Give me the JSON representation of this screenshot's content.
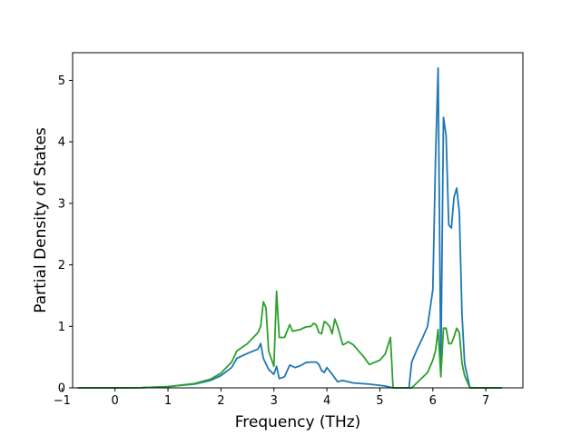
{
  "chart_data": {
    "type": "line",
    "title": "",
    "xlabel": "Frequency (THz)",
    "ylabel": "Partial Density of States",
    "xlim": [
      -0.8,
      7.7
    ],
    "ylim": [
      0,
      5.45
    ],
    "xticks": [
      -1,
      0,
      1,
      2,
      3,
      4,
      5,
      6,
      7
    ],
    "yticks": [
      0,
      1,
      2,
      3,
      4,
      5
    ],
    "grid": false,
    "legend": "none",
    "series": [
      {
        "color": "#1f77b4",
        "x": [
          -0.7,
          0,
          0.5,
          1,
          1.5,
          1.8,
          2.0,
          2.2,
          2.3,
          2.5,
          2.7,
          2.75,
          2.8,
          2.9,
          3.0,
          3.05,
          3.1,
          3.2,
          3.3,
          3.4,
          3.5,
          3.6,
          3.7,
          3.8,
          3.85,
          3.9,
          3.95,
          4.0,
          4.1,
          4.2,
          4.3,
          4.5,
          4.8,
          5.1,
          5.25,
          5.3,
          5.55,
          5.6,
          5.7,
          5.8,
          5.9,
          6.0,
          6.05,
          6.1,
          6.15,
          6.2,
          6.25,
          6.3,
          6.35,
          6.4,
          6.45,
          6.5,
          6.55,
          6.6,
          6.7,
          7.3
        ],
        "y": [
          0,
          0,
          0.003,
          0.02,
          0.06,
          0.12,
          0.2,
          0.33,
          0.48,
          0.56,
          0.63,
          0.72,
          0.48,
          0.3,
          0.22,
          0.35,
          0.15,
          0.18,
          0.37,
          0.33,
          0.36,
          0.41,
          0.42,
          0.42,
          0.38,
          0.28,
          0.25,
          0.33,
          0.22,
          0.1,
          0.12,
          0.08,
          0.06,
          0.03,
          0.0,
          0.0,
          0.0,
          0.42,
          0.62,
          0.8,
          1.0,
          1.6,
          3.7,
          5.2,
          0.3,
          4.4,
          4.1,
          2.65,
          2.6,
          3.1,
          3.25,
          2.85,
          1.2,
          0.4,
          0.0,
          0.0
        ]
      },
      {
        "color": "#2ca02c",
        "x": [
          -0.7,
          0,
          0.5,
          1,
          1.5,
          1.8,
          2.0,
          2.2,
          2.3,
          2.5,
          2.7,
          2.75,
          2.8,
          2.85,
          2.9,
          3.0,
          3.05,
          3.1,
          3.2,
          3.3,
          3.35,
          3.4,
          3.5,
          3.6,
          3.7,
          3.75,
          3.8,
          3.85,
          3.9,
          3.95,
          4.0,
          4.05,
          4.1,
          4.15,
          4.2,
          4.3,
          4.35,
          4.4,
          4.5,
          4.6,
          4.7,
          4.8,
          5.0,
          5.1,
          5.2,
          5.25,
          5.3,
          5.6,
          5.9,
          6.0,
          6.05,
          6.1,
          6.15,
          6.2,
          6.25,
          6.3,
          6.35,
          6.4,
          6.45,
          6.5,
          6.55,
          6.6,
          6.7,
          7.3
        ],
        "y": [
          0,
          0,
          0.003,
          0.02,
          0.07,
          0.14,
          0.24,
          0.42,
          0.6,
          0.72,
          0.9,
          1.0,
          1.4,
          1.3,
          0.6,
          0.35,
          1.57,
          0.82,
          0.82,
          1.03,
          0.92,
          0.93,
          0.95,
          0.99,
          1.0,
          1.05,
          1.02,
          0.9,
          0.88,
          1.08,
          1.05,
          1.0,
          0.88,
          1.12,
          1.0,
          0.7,
          0.72,
          0.75,
          0.7,
          0.6,
          0.5,
          0.38,
          0.45,
          0.55,
          0.82,
          0.0,
          0.0,
          0.0,
          0.25,
          0.45,
          0.6,
          0.95,
          0.18,
          0.97,
          0.97,
          0.72,
          0.72,
          0.83,
          0.97,
          0.9,
          0.4,
          0.2,
          0.0,
          0.0
        ]
      }
    ]
  }
}
